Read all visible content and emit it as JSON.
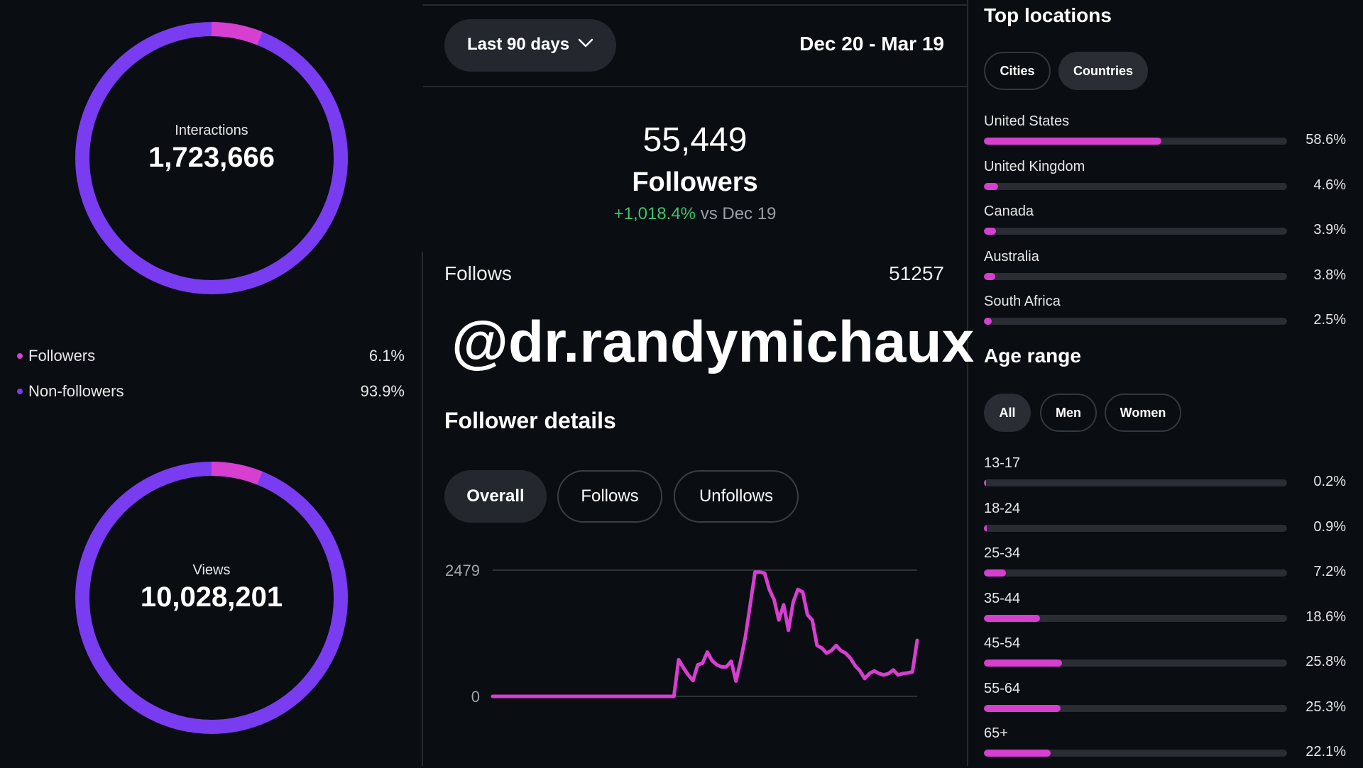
{
  "colors": {
    "background": "#0a0d12",
    "followers_pink": "#d63fd0",
    "nonfollowers_purple": "#7a3cf0",
    "positive_green": "#3ec46d"
  },
  "interactions": {
    "label": "Interactions",
    "value": "1,723,666",
    "followers_fraction": 0.061
  },
  "legend": [
    {
      "name": "Followers",
      "pct": "6.1%",
      "color": "#d63fd0"
    },
    {
      "name": "Non-followers",
      "pct": "93.9%",
      "color": "#7a3cf0"
    }
  ],
  "views": {
    "label": "Views",
    "value": "10,028,201",
    "followers_fraction": 0.061
  },
  "header": {
    "range_label": "Last 90 days",
    "range_icon": "chevron-down-icon",
    "date_range": "Dec 20 - Mar 19"
  },
  "summary": {
    "count": "55,449",
    "title": "Followers",
    "change": "+1,018.4%",
    "vs": "vs Dec 19"
  },
  "follows": {
    "label": "Follows",
    "value": "51257"
  },
  "overlay_handle": "@dr.randymichaux",
  "follower_details": {
    "title": "Follower details",
    "tabs": [
      {
        "label": "Overall",
        "selected": true
      },
      {
        "label": "Follows",
        "selected": false
      },
      {
        "label": "Unfollows",
        "selected": false
      }
    ]
  },
  "chart_data": {
    "type": "line",
    "title": "",
    "xlabel": "",
    "ylabel": "",
    "ylim": [
      0,
      2479
    ],
    "ytick_labels": [
      "2479",
      "0"
    ],
    "grid": true,
    "series": [
      {
        "color": "#d63fd0",
        "x": [
          1,
          2,
          3,
          4,
          5,
          6,
          7,
          8,
          9,
          10,
          11,
          12,
          13,
          14,
          15,
          16,
          17,
          18,
          19,
          20,
          21,
          22,
          23,
          24,
          25,
          26,
          27,
          28,
          29,
          30,
          31,
          32,
          33,
          34,
          35,
          36,
          37,
          38,
          39,
          40,
          41,
          42,
          43,
          44,
          45,
          46,
          47,
          48,
          49,
          50,
          51,
          52,
          53,
          54,
          55,
          56,
          57,
          58,
          59,
          60,
          61,
          62,
          63,
          64,
          65,
          66,
          67,
          68,
          69,
          70,
          71,
          72,
          73,
          74,
          75,
          76,
          77,
          78,
          79,
          80,
          81,
          82,
          83,
          84,
          85,
          86,
          87,
          88,
          89,
          90
        ],
        "values": [
          0,
          0,
          0,
          0,
          0,
          0,
          0,
          0,
          0,
          0,
          0,
          0,
          0,
          0,
          0,
          0,
          0,
          0,
          0,
          0,
          0,
          0,
          0,
          0,
          0,
          0,
          0,
          0,
          0,
          0,
          0,
          0,
          0,
          0,
          0,
          0,
          0,
          0,
          0,
          720,
          560,
          420,
          310,
          620,
          650,
          870,
          700,
          620,
          580,
          580,
          690,
          300,
          700,
          1180,
          1800,
          2440,
          2440,
          2420,
          2100,
          1900,
          1500,
          1800,
          1300,
          1850,
          2100,
          2050,
          1600,
          1500,
          1000,
          950,
          850,
          900,
          1000,
          900,
          850,
          750,
          600,
          500,
          350,
          450,
          500,
          450,
          420,
          450,
          520,
          420,
          450,
          460,
          480,
          1100
        ]
      }
    ]
  },
  "top_locations": {
    "title": "Top locations",
    "tabs": [
      {
        "label": "Cities",
        "selected": false
      },
      {
        "label": "Countries",
        "selected": true
      }
    ],
    "items": [
      {
        "name": "United States",
        "pct": "58.6%",
        "value": 58.6
      },
      {
        "name": "United Kingdom",
        "pct": "4.6%",
        "value": 4.6
      },
      {
        "name": "Canada",
        "pct": "3.9%",
        "value": 3.9
      },
      {
        "name": "Australia",
        "pct": "3.8%",
        "value": 3.8
      },
      {
        "name": "South Africa",
        "pct": "2.5%",
        "value": 2.5
      }
    ]
  },
  "age_range": {
    "title": "Age range",
    "tabs": [
      {
        "label": "All",
        "selected": true
      },
      {
        "label": "Men",
        "selected": false
      },
      {
        "label": "Women",
        "selected": false
      }
    ],
    "items": [
      {
        "name": "13-17",
        "pct": "0.2%",
        "value": 0.2
      },
      {
        "name": "18-24",
        "pct": "0.9%",
        "value": 0.9
      },
      {
        "name": "25-34",
        "pct": "7.2%",
        "value": 7.2
      },
      {
        "name": "35-44",
        "pct": "18.6%",
        "value": 18.6
      },
      {
        "name": "45-54",
        "pct": "25.8%",
        "value": 25.8
      },
      {
        "name": "55-64",
        "pct": "25.3%",
        "value": 25.3
      },
      {
        "name": "65+",
        "pct": "22.1%",
        "value": 22.1
      }
    ]
  }
}
